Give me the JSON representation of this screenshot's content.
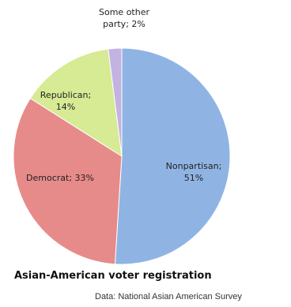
{
  "chart_data": {
    "type": "pie",
    "title": "Asian-American voter registration",
    "source": "Data: National Asian American Survey",
    "slices": [
      {
        "name": "Nonpartisan",
        "value": 51,
        "label_lines": [
          "Nonpartisan;",
          "51%"
        ],
        "color": "#8fb4e3"
      },
      {
        "name": "Democrat",
        "value": 33,
        "label_lines": [
          "Democrat; 33%"
        ],
        "color": "#e68b8a"
      },
      {
        "name": "Republican",
        "value": 14,
        "label_lines": [
          "Republican;",
          "14%"
        ],
        "color": "#d7ea94"
      },
      {
        "name": "Some other party",
        "value": 2,
        "label_lines": [
          "Some other",
          "party; 2%"
        ],
        "color": "#c3b3e0"
      }
    ],
    "start_angle": "12 o'clock",
    "direction": "clockwise",
    "legend": "none"
  }
}
